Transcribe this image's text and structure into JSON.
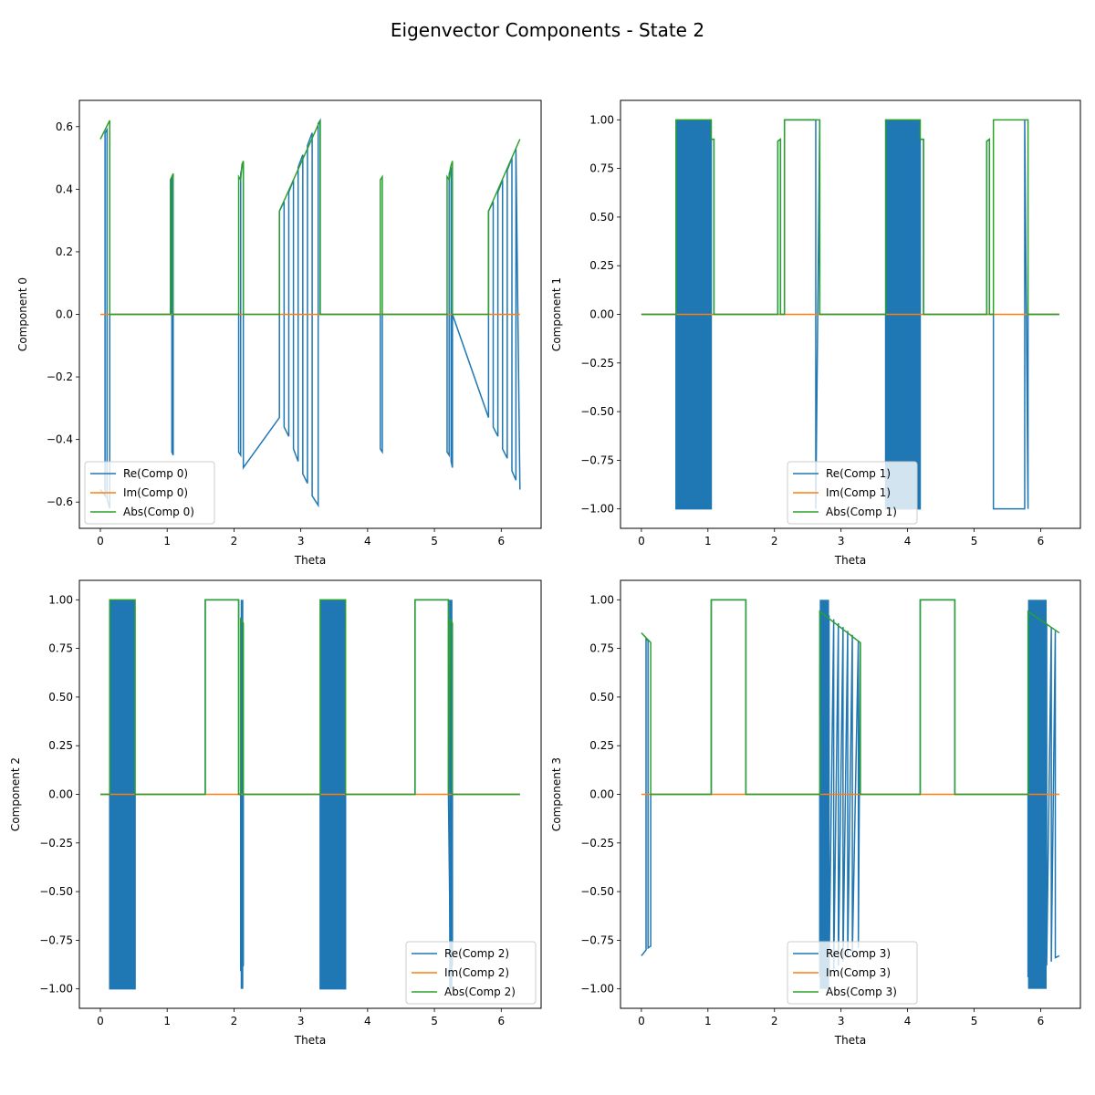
{
  "figure": {
    "title": "Eigenvector Components - State 2"
  },
  "colors": {
    "re": "#1f77b4",
    "im": "#ff7f0e",
    "abs": "#2ca02c"
  },
  "chart_data": [
    {
      "type": "line",
      "title": "",
      "xlabel": "Theta",
      "ylabel": "Component 0",
      "xlim": [
        -0.314,
        6.597
      ],
      "ylim": [
        -0.684,
        0.684
      ],
      "xticks": [
        0,
        1,
        2,
        3,
        4,
        5,
        6
      ],
      "yticks": [
        -0.6,
        -0.4,
        -0.2,
        0.0,
        0.2,
        0.4,
        0.6
      ],
      "ytick_labels": [
        "−0.6",
        "−0.4",
        "−0.2",
        "0.0",
        "0.2",
        "0.4",
        "0.6"
      ],
      "legend_position": "lower-left",
      "series": [
        {
          "key": "re",
          "name": "Re(Comp 0)",
          "color": "#1f77b4",
          "x": [
            0.0,
            0.07,
            0.07,
            0.1,
            0.1,
            0.14,
            0.14,
            1.05,
            1.05,
            1.07,
            1.07,
            1.09,
            1.09,
            2.07,
            2.07,
            2.1,
            2.1,
            2.14,
            2.14,
            2.68,
            2.68,
            2.75,
            2.75,
            2.82,
            2.82,
            2.89,
            2.89,
            2.96,
            2.96,
            3.03,
            3.03,
            3.1,
            3.1,
            3.17,
            3.17,
            3.26,
            3.26,
            3.29,
            3.29,
            4.19,
            4.19,
            4.22,
            4.22,
            5.19,
            5.19,
            5.22,
            5.22,
            5.25,
            5.25,
            5.27,
            5.27,
            5.81,
            5.81,
            5.88,
            5.88,
            5.95,
            5.95,
            6.02,
            6.02,
            6.09,
            6.09,
            6.16,
            6.16,
            6.22,
            6.22,
            6.28
          ],
          "y": [
            -0.56,
            -0.58,
            0.58,
            0.59,
            -0.59,
            -0.62,
            0.0,
            0.0,
            0.43,
            0.44,
            -0.44,
            -0.45,
            0.0,
            0.0,
            -0.44,
            -0.45,
            0.45,
            0.49,
            -0.49,
            -0.33,
            0.33,
            0.36,
            -0.36,
            -0.39,
            0.39,
            0.43,
            -0.43,
            -0.47,
            0.47,
            0.51,
            -0.51,
            -0.54,
            0.54,
            0.58,
            -0.58,
            -0.61,
            0.61,
            0.62,
            0.0,
            0.0,
            -0.43,
            -0.44,
            0.0,
            0.0,
            -0.44,
            -0.45,
            0.45,
            0.47,
            -0.47,
            -0.49,
            0.0,
            -0.33,
            0.33,
            0.36,
            -0.36,
            -0.39,
            0.39,
            0.43,
            -0.43,
            -0.46,
            0.46,
            0.5,
            -0.5,
            -0.53,
            0.53,
            -0.56
          ]
        },
        {
          "key": "im",
          "name": "Im(Comp 0)",
          "color": "#ff7f0e",
          "x": [
            0.0,
            6.28
          ],
          "y": [
            0.0,
            0.0
          ]
        },
        {
          "key": "abs",
          "name": "Abs(Comp 0)",
          "color": "#2ca02c",
          "x": [
            0.0,
            0.14,
            0.14,
            1.05,
            1.05,
            1.09,
            1.09,
            2.07,
            2.07,
            2.1,
            2.12,
            2.14,
            2.14,
            2.68,
            2.68,
            3.29,
            3.29,
            4.19,
            4.19,
            4.22,
            4.22,
            5.19,
            5.19,
            5.22,
            5.24,
            5.27,
            5.27,
            5.81,
            5.81,
            6.28
          ],
          "y": [
            0.56,
            0.62,
            0.0,
            0.0,
            0.43,
            0.45,
            0.0,
            0.0,
            0.44,
            0.43,
            0.48,
            0.49,
            0.0,
            0.0,
            0.33,
            0.62,
            0.0,
            0.0,
            0.43,
            0.44,
            0.0,
            0.0,
            0.44,
            0.43,
            0.47,
            0.49,
            0.0,
            0.0,
            0.33,
            0.56
          ]
        }
      ]
    },
    {
      "type": "line",
      "title": "",
      "xlabel": "Theta",
      "ylabel": "Component 1",
      "xlim": [
        -0.314,
        6.597
      ],
      "ylim": [
        -1.1,
        1.1
      ],
      "xticks": [
        0,
        1,
        2,
        3,
        4,
        5,
        6
      ],
      "yticks": [
        -1.0,
        -0.75,
        -0.5,
        -0.25,
        0.0,
        0.25,
        0.5,
        0.75,
        1.0
      ],
      "ytick_labels": [
        "−1.00",
        "−0.75",
        "−0.50",
        "−0.25",
        "0.00",
        "0.25",
        "0.50",
        "0.75",
        "1.00"
      ],
      "legend_position": "lower-center",
      "series": [
        {
          "key": "re",
          "name": "Re(Comp 1)",
          "color": "#1f77b4",
          "x": [
            0.0,
            0.52,
            0.52,
            1.05,
            1.05,
            1.09,
            1.09,
            2.05,
            2.05,
            2.09,
            2.09,
            2.15,
            2.15,
            2.62,
            2.62,
            2.68,
            2.68,
            3.67,
            3.67,
            4.19,
            4.19,
            4.24,
            4.24,
            5.19,
            5.19,
            5.23,
            5.23,
            5.29,
            5.29,
            5.76,
            5.76,
            5.81,
            5.81,
            6.28
          ],
          "y": [
            0.0,
            0.0,
            -1.0,
            -1.0,
            0.9,
            0.9,
            0.0,
            0.0,
            0.89,
            0.9,
            0.0,
            0.0,
            1.0,
            1.0,
            -1.0,
            1.0,
            0.0,
            0.0,
            -1.0,
            -1.0,
            0.9,
            0.9,
            0.0,
            0.0,
            0.89,
            0.9,
            0.0,
            0.0,
            -1.0,
            -1.0,
            1.0,
            -1.0,
            0.0,
            0.0
          ],
          "dense_fill": [
            [
              0.52,
              1.05
            ],
            [
              3.67,
              4.19
            ]
          ]
        },
        {
          "key": "im",
          "name": "Im(Comp 1)",
          "color": "#ff7f0e",
          "x": [
            0.0,
            6.28
          ],
          "y": [
            0.0,
            0.0
          ]
        },
        {
          "key": "abs",
          "name": "Abs(Comp 1)",
          "color": "#2ca02c",
          "x": [
            0.0,
            0.52,
            0.52,
            1.05,
            1.05,
            1.09,
            1.09,
            2.05,
            2.05,
            2.09,
            2.09,
            2.15,
            2.15,
            2.68,
            2.68,
            3.67,
            3.67,
            4.19,
            4.19,
            4.24,
            4.24,
            5.19,
            5.19,
            5.23,
            5.23,
            5.29,
            5.29,
            5.81,
            5.81,
            6.28
          ],
          "y": [
            0.0,
            0.0,
            1.0,
            1.0,
            0.9,
            0.9,
            0.0,
            0.0,
            0.89,
            0.9,
            0.0,
            0.0,
            1.0,
            1.0,
            0.0,
            0.0,
            1.0,
            1.0,
            0.9,
            0.9,
            0.0,
            0.0,
            0.89,
            0.9,
            0.0,
            0.0,
            1.0,
            1.0,
            0.0,
            0.0
          ]
        }
      ]
    },
    {
      "type": "line",
      "title": "",
      "xlabel": "Theta",
      "ylabel": "Component 2",
      "xlim": [
        -0.314,
        6.597
      ],
      "ylim": [
        -1.1,
        1.1
      ],
      "xticks": [
        0,
        1,
        2,
        3,
        4,
        5,
        6
      ],
      "yticks": [
        -1.0,
        -0.75,
        -0.5,
        -0.25,
        0.0,
        0.25,
        0.5,
        0.75,
        1.0
      ],
      "ytick_labels": [
        "−1.00",
        "−0.75",
        "−0.50",
        "−0.25",
        "0.00",
        "0.25",
        "0.50",
        "0.75",
        "1.00"
      ],
      "legend_position": "lower-right",
      "series": [
        {
          "key": "re",
          "name": "Re(Comp 2)",
          "color": "#1f77b4",
          "x": [
            0.0,
            0.14,
            0.14,
            0.52,
            0.52,
            1.57,
            1.57,
            2.07,
            2.07,
            2.1,
            2.1,
            2.14,
            2.14,
            3.29,
            3.29,
            3.67,
            3.67,
            4.71,
            4.71,
            5.21,
            5.21,
            5.24,
            5.24,
            5.27,
            5.27,
            6.28
          ],
          "y": [
            0.0,
            0.0,
            -1.0,
            -1.0,
            0.0,
            0.0,
            1.0,
            1.0,
            0.0,
            0.0,
            -0.9,
            -0.88,
            0.0,
            0.0,
            -1.0,
            -1.0,
            0.0,
            0.0,
            1.0,
            1.0,
            0.0,
            -0.9,
            0.9,
            -0.88,
            0.0,
            0.0
          ],
          "dense_fill": [
            [
              0.14,
              0.52
            ],
            [
              3.29,
              3.67
            ],
            [
              2.1,
              2.14
            ],
            [
              5.22,
              5.27
            ]
          ]
        },
        {
          "key": "im",
          "name": "Im(Comp 2)",
          "color": "#ff7f0e",
          "x": [
            0.0,
            6.28
          ],
          "y": [
            0.0,
            0.0
          ]
        },
        {
          "key": "abs",
          "name": "Abs(Comp 2)",
          "color": "#2ca02c",
          "x": [
            0.0,
            0.14,
            0.14,
            0.52,
            0.52,
            1.57,
            1.57,
            2.07,
            2.07,
            2.1,
            2.1,
            2.14,
            2.14,
            3.29,
            3.29,
            3.67,
            3.67,
            4.71,
            4.71,
            5.21,
            5.21,
            5.24,
            5.24,
            5.27,
            5.27,
            6.28
          ],
          "y": [
            0.0,
            0.0,
            1.0,
            1.0,
            0.0,
            0.0,
            1.0,
            1.0,
            0.0,
            0.0,
            0.9,
            0.88,
            0.0,
            0.0,
            1.0,
            1.0,
            0.0,
            0.0,
            1.0,
            1.0,
            0.0,
            0.9,
            0.9,
            0.88,
            0.0,
            0.0
          ]
        }
      ]
    },
    {
      "type": "line",
      "title": "",
      "xlabel": "Theta",
      "ylabel": "Component 3",
      "xlim": [
        -0.314,
        6.597
      ],
      "ylim": [
        -1.1,
        1.1
      ],
      "xticks": [
        0,
        1,
        2,
        3,
        4,
        5,
        6
      ],
      "yticks": [
        -1.0,
        -0.75,
        -0.5,
        -0.25,
        0.0,
        0.25,
        0.5,
        0.75,
        1.0
      ],
      "ytick_labels": [
        "−1.00",
        "−0.75",
        "−0.50",
        "−0.25",
        "0.00",
        "0.25",
        "0.50",
        "0.75",
        "1.00"
      ],
      "legend_position": "lower-center",
      "series": [
        {
          "key": "re",
          "name": "Re(Comp 3)",
          "color": "#1f77b4",
          "x": [
            0.0,
            0.07,
            0.07,
            0.1,
            0.1,
            0.14,
            0.14,
            1.05,
            1.05,
            1.57,
            1.57,
            2.68,
            2.68,
            2.75,
            2.75,
            2.82,
            2.82,
            2.89,
            2.89,
            2.96,
            2.96,
            3.03,
            3.03,
            3.1,
            3.1,
            3.17,
            3.17,
            3.26,
            3.26,
            3.29,
            3.29,
            4.19,
            4.19,
            4.71,
            4.71,
            5.81,
            5.81,
            5.88,
            5.88,
            5.95,
            5.95,
            6.02,
            6.02,
            6.09,
            6.09,
            6.16,
            6.16,
            6.22,
            6.22,
            6.28
          ],
          "y": [
            -0.83,
            -0.8,
            0.8,
            0.79,
            -0.79,
            -0.78,
            0.0,
            0.0,
            1.0,
            1.0,
            0.0,
            0.0,
            -0.94,
            0.93,
            -0.93,
            0.92,
            -0.92,
            0.9,
            -0.9,
            0.88,
            -0.88,
            0.86,
            -0.86,
            0.84,
            -0.84,
            0.82,
            -0.82,
            0.79,
            -0.79,
            0.78,
            0.0,
            0.0,
            1.0,
            1.0,
            0.0,
            0.0,
            -0.94,
            0.93,
            -0.93,
            0.92,
            -0.92,
            0.9,
            -0.9,
            0.88,
            -0.88,
            0.86,
            -0.86,
            0.84,
            -0.84,
            -0.83
          ],
          "dense_fill": [
            [
              2.68,
              2.82
            ],
            [
              5.81,
              6.09
            ]
          ]
        },
        {
          "key": "im",
          "name": "Im(Comp 3)",
          "color": "#ff7f0e",
          "x": [
            0.0,
            6.28
          ],
          "y": [
            0.0,
            0.0
          ]
        },
        {
          "key": "abs",
          "name": "Abs(Comp 3)",
          "color": "#2ca02c",
          "x": [
            0.0,
            0.14,
            0.14,
            1.05,
            1.05,
            1.57,
            1.57,
            2.68,
            2.68,
            3.29,
            3.29,
            4.19,
            4.19,
            4.71,
            4.71,
            5.81,
            5.81,
            6.28
          ],
          "y": [
            0.83,
            0.78,
            0.0,
            0.0,
            1.0,
            1.0,
            0.0,
            0.0,
            0.94,
            0.78,
            0.0,
            0.0,
            1.0,
            1.0,
            0.0,
            0.0,
            0.94,
            0.83
          ]
        }
      ]
    }
  ]
}
